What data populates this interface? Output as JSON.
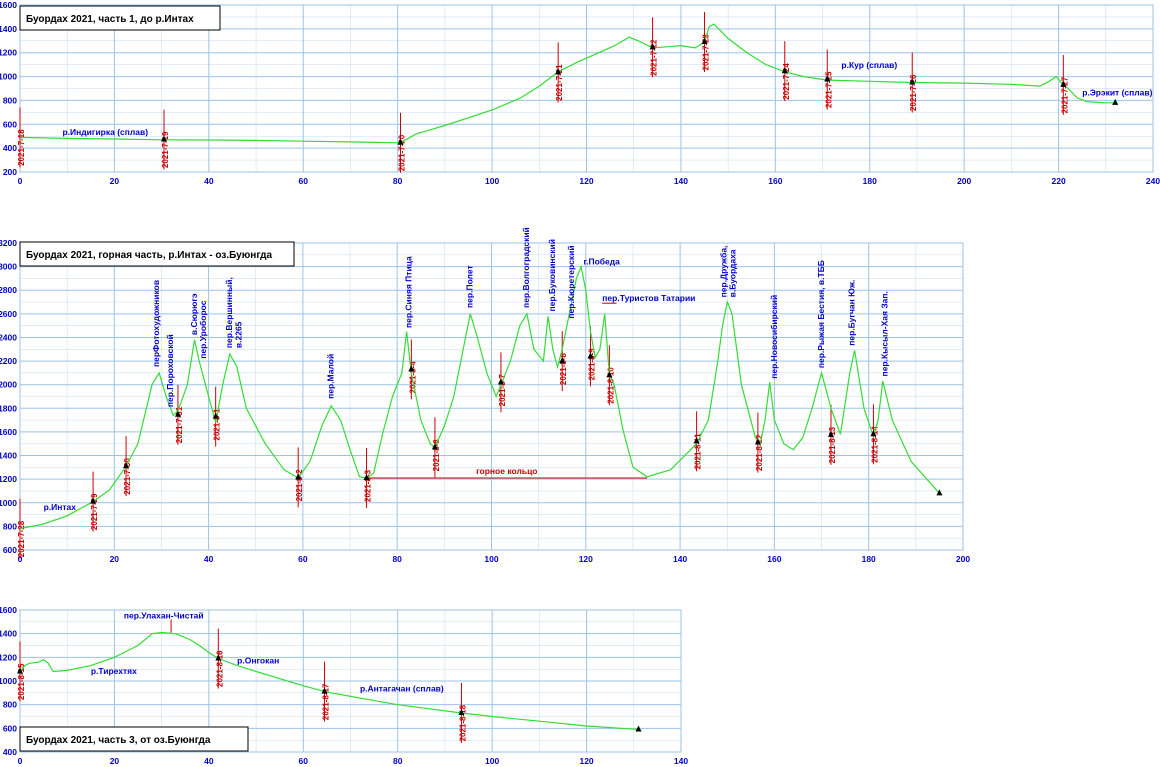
{
  "colors": {
    "grid": "#9dc3e6",
    "profile": "#33dd33",
    "marker": "#cc0000",
    "day_label": "#cc0000",
    "place_label": "#0000cc",
    "tick_label": "#0000cc",
    "ring": "#cc0000",
    "camp": "#000000"
  },
  "chart_data": [
    {
      "type": "line",
      "title": "Буордах 2021, часть 1, до р.Интах",
      "xlim": [
        0,
        240
      ],
      "ylim": [
        200,
        1600
      ],
      "x_ticks": [
        0,
        20,
        40,
        60,
        80,
        100,
        120,
        140,
        160,
        180,
        200,
        220,
        240
      ],
      "y_ticks": [
        200,
        400,
        600,
        800,
        1000,
        1200,
        1400,
        1600
      ],
      "series": [
        {
          "x": [
            0,
            10,
            20,
            30,
            40,
            50,
            60,
            70,
            80.6,
            84,
            90,
            100,
            106,
            110,
            114,
            118,
            122,
            126,
            129,
            131,
            134,
            137,
            140,
            143,
            145,
            146,
            147,
            150,
            154,
            158,
            162,
            166,
            171,
            180,
            189,
            200,
            210,
            216,
            218,
            219.5,
            221,
            222,
            224,
            226,
            230,
            232
          ],
          "y": [
            490,
            482,
            477,
            470,
            468,
            465,
            458,
            452,
            445,
            520,
            590,
            720,
            820,
            920,
            1040,
            1120,
            1190,
            1260,
            1330,
            1300,
            1240,
            1250,
            1260,
            1240,
            1290,
            1420,
            1440,
            1320,
            1200,
            1100,
            1040,
            1000,
            970,
            960,
            950,
            945,
            935,
            920,
            960,
            1000,
            930,
            900,
            820,
            790,
            780,
            780
          ]
        }
      ],
      "markers": [
        {
          "x": 0,
          "y": 490,
          "day": "2021-7-18"
        },
        {
          "x": 30.5,
          "y": 472,
          "day": "2021-7-19"
        },
        {
          "x": 80.6,
          "y": 445,
          "day": "2021-7-20"
        },
        {
          "x": 114,
          "y": 1035,
          "day": "2021-7-21"
        },
        {
          "x": 134,
          "y": 1245,
          "day": "2021-7-22"
        },
        {
          "x": 145,
          "y": 1290,
          "day": "2021-7-23"
        },
        {
          "x": 162,
          "y": 1045,
          "day": "2021-7-24"
        },
        {
          "x": 171,
          "y": 975,
          "day": "2021-7-25"
        },
        {
          "x": 189,
          "y": 950,
          "day": "2021-7-26"
        },
        {
          "x": 221,
          "y": 930,
          "day": "2021-7-27"
        }
      ],
      "camps": [
        {
          "x": 30.5,
          "y": 472
        },
        {
          "x": 80.6,
          "y": 445
        },
        {
          "x": 114,
          "y": 1035
        },
        {
          "x": 134,
          "y": 1245
        },
        {
          "x": 145,
          "y": 1290
        },
        {
          "x": 162,
          "y": 1045
        },
        {
          "x": 171,
          "y": 975
        },
        {
          "x": 189,
          "y": 950
        },
        {
          "x": 221,
          "y": 930
        },
        {
          "x": 232,
          "y": 780
        }
      ],
      "labels": [
        {
          "text": "р.Индигирка (сплав)",
          "x": 9,
          "y": 510
        },
        {
          "text": "р.Кур (сплав)",
          "x": 174,
          "y": 1070
        },
        {
          "text": "р.Эрэкит (сплав)",
          "x": 225,
          "y": 840
        }
      ]
    },
    {
      "type": "line",
      "title": "Буордах 2021, горная часть, р.Интах - оз.Буюнгда",
      "xlim": [
        0,
        200
      ],
      "ylim": [
        600,
        3200
      ],
      "x_ticks": [
        0,
        20,
        40,
        60,
        80,
        100,
        120,
        140,
        160,
        180,
        200
      ],
      "y_ticks": [
        600,
        800,
        1000,
        1200,
        1400,
        1600,
        1800,
        2000,
        2200,
        2400,
        2600,
        2800,
        3000,
        3200
      ],
      "series": [
        {
          "x": [
            0,
            5,
            10,
            15.5,
            19,
            22.5,
            25,
            28,
            29.5,
            31,
            32.5,
            33.5,
            35.5,
            37,
            38,
            40,
            41.5,
            43,
            44.5,
            46,
            48,
            52,
            56,
            59,
            61.5,
            64,
            66,
            68,
            70,
            72,
            73.5,
            75,
            77,
            79,
            81,
            82,
            83,
            85,
            87,
            88,
            90,
            92,
            94,
            95.5,
            97,
            99,
            101,
            102,
            104,
            106,
            107.5,
            109,
            110,
            111,
            112,
            113,
            114,
            115,
            116,
            117,
            118,
            119,
            120,
            121,
            122,
            123,
            124,
            125,
            126,
            128,
            130,
            133,
            138,
            143.5,
            146,
            148,
            149,
            150,
            151,
            153,
            156,
            157,
            158,
            159,
            160,
            162,
            164,
            166,
            168,
            170,
            172,
            174,
            176,
            177,
            179,
            181,
            182,
            183,
            185,
            189,
            193,
            195
          ],
          "y": [
            780,
            820,
            890,
            1010,
            1110,
            1310,
            1500,
            2000,
            2100,
            1900,
            1740,
            1780,
            2000,
            2380,
            2200,
            1900,
            1680,
            2000,
            2260,
            2150,
            1800,
            1500,
            1280,
            1210,
            1350,
            1650,
            1820,
            1700,
            1450,
            1220,
            1210,
            1250,
            1600,
            1900,
            2100,
            2450,
            2100,
            1700,
            1500,
            1470,
            1650,
            1900,
            2300,
            2600,
            2400,
            2100,
            1900,
            2000,
            2200,
            2500,
            2600,
            2300,
            2250,
            2200,
            2580,
            2300,
            2150,
            2300,
            2500,
            2700,
            2900,
            3000,
            2800,
            2450,
            2230,
            2300,
            2600,
            2080,
            2000,
            1600,
            1300,
            1220,
            1280,
            1500,
            1700,
            2200,
            2500,
            2700,
            2600,
            2000,
            1550,
            1500,
            1700,
            2020,
            1700,
            1500,
            1450,
            1550,
            1800,
            2100,
            1800,
            1580,
            2100,
            2290,
            1800,
            1560,
            1700,
            2030,
            1700,
            1350,
            1170,
            1080
          ]
        }
      ],
      "markers": [
        {
          "x": 0,
          "y": 780,
          "day": "2021-7-28"
        },
        {
          "x": 15.5,
          "y": 1010,
          "day": "2021-7-29"
        },
        {
          "x": 22.5,
          "y": 1310,
          "day": "2021-7-30"
        },
        {
          "x": 33.5,
          "y": 1745,
          "day": "2021-7-31"
        },
        {
          "x": 41.5,
          "y": 1730,
          "day": "2021-8-1"
        },
        {
          "x": 59,
          "y": 1215,
          "day": "2021-8-2"
        },
        {
          "x": 73.5,
          "y": 1210,
          "day": "2021-8-3"
        },
        {
          "x": 83,
          "y": 2130,
          "day": "2021-8-4"
        },
        {
          "x": 88,
          "y": 1470,
          "day": "2021-8-6"
        },
        {
          "x": 102,
          "y": 2020,
          "day": "2021-8-7"
        },
        {
          "x": 115,
          "y": 2200,
          "day": "2021-8-8"
        },
        {
          "x": 121,
          "y": 2240,
          "day": "2021-8-9"
        },
        {
          "x": 125,
          "y": 2080,
          "day": "2021-8-10"
        },
        {
          "x": 143.5,
          "y": 1520,
          "day": "2021-8-11"
        },
        {
          "x": 156.5,
          "y": 1510,
          "day": "2021-8-12"
        },
        {
          "x": 172,
          "y": 1575,
          "day": "2021-8-13"
        },
        {
          "x": 181,
          "y": 1580,
          "day": "2021-8-14"
        }
      ],
      "camps": [
        {
          "x": 15.5,
          "y": 1010
        },
        {
          "x": 22.5,
          "y": 1310
        },
        {
          "x": 33.5,
          "y": 1745
        },
        {
          "x": 41.5,
          "y": 1730
        },
        {
          "x": 59,
          "y": 1215
        },
        {
          "x": 73.5,
          "y": 1210
        },
        {
          "x": 83,
          "y": 2130
        },
        {
          "x": 88,
          "y": 1470
        },
        {
          "x": 102,
          "y": 2020
        },
        {
          "x": 115,
          "y": 2200
        },
        {
          "x": 121,
          "y": 2240
        },
        {
          "x": 125,
          "y": 2080
        },
        {
          "x": 143.5,
          "y": 1520
        },
        {
          "x": 156.5,
          "y": 1510
        },
        {
          "x": 172,
          "y": 1575
        },
        {
          "x": 181,
          "y": 1580
        },
        {
          "x": 195,
          "y": 1080
        }
      ],
      "labels": [
        {
          "text": "р.Интах",
          "x": 5,
          "y": 940,
          "rot": 0
        },
        {
          "text": "перФотохудожников",
          "x": 29.5,
          "y": 2150,
          "rot": -90
        },
        {
          "text": "пер.Пороховской",
          "x": 32.5,
          "y": 1810,
          "rot": -90
        },
        {
          "text": "в.Сюрюгэ",
          "x": 37.5,
          "y": 2420,
          "rot": -90
        },
        {
          "text": "пер.Уроборос",
          "x": 39.5,
          "y": 2220,
          "rot": -90
        },
        {
          "text": "пер.Вершинный,",
          "x": 45,
          "y": 2310,
          "rot": -90
        },
        {
          "text": "в.2265",
          "x": 47,
          "y": 2310,
          "rot": -90
        },
        {
          "text": "пер.Малой",
          "x": 66.5,
          "y": 1880,
          "rot": -90
        },
        {
          "text": "пер.Синяя Птица",
          "x": 83,
          "y": 2480,
          "rot": -90
        },
        {
          "text": "пер.Полет",
          "x": 96,
          "y": 2650,
          "rot": -90
        },
        {
          "text": "пер.Волгоградский",
          "x": 108,
          "y": 2650,
          "rot": -90
        },
        {
          "text": "пер.Буковинский",
          "x": 113.5,
          "y": 2620,
          "rot": -90
        },
        {
          "text": "пер.Кюретерский",
          "x": 117.5,
          "y": 2560,
          "rot": -90
        },
        {
          "text": "г.Победа",
          "x": 119.5,
          "y": 3020,
          "rot": 0
        },
        {
          "text": "пер.Туристов Татарии",
          "x": 123.5,
          "y": 2710,
          "rot": 0
        },
        {
          "text": "пер.Дружба,",
          "x": 149.8,
          "y": 2740,
          "rot": -90
        },
        {
          "text": "в.Буордаха",
          "x": 151.8,
          "y": 2740,
          "rot": -90
        },
        {
          "text": "пер.Новосибирский",
          "x": 160.5,
          "y": 2050,
          "rot": -90
        },
        {
          "text": "пер.Рыжая Бестия, в.ТББ",
          "x": 170.5,
          "y": 2140,
          "rot": -90
        },
        {
          "text": "пер.Бугчан Юж.",
          "x": 177,
          "y": 2330,
          "rot": -90
        },
        {
          "text": "пер.Кысыл-Хая Зап.",
          "x": 184,
          "y": 2070,
          "rot": -90
        }
      ],
      "ring": {
        "label": "горное кольцо",
        "x1": 73.5,
        "x2": 133,
        "y": 1210
      },
      "pobeda_bar": {
        "x1": 123.5,
        "x2": 126.5,
        "y": 2690
      }
    },
    {
      "type": "line",
      "title": "Буордах 2021, часть 3, от оз.Буюнгда",
      "xlim": [
        0,
        140
      ],
      "ylim": [
        400,
        1600
      ],
      "x_ticks": [
        0,
        20,
        40,
        60,
        80,
        100,
        120,
        140
      ],
      "y_ticks": [
        400,
        600,
        800,
        1000,
        1200,
        1400,
        1600
      ],
      "series": [
        {
          "x": [
            0,
            1,
            2,
            4,
            5,
            6,
            7,
            10,
            15,
            20,
            25,
            28,
            30,
            33,
            36,
            38,
            40,
            42,
            46,
            50,
            60,
            64.5,
            70,
            80,
            93.5,
            100,
            110,
            120,
            131
          ],
          "y": [
            1080,
            1130,
            1150,
            1160,
            1180,
            1150,
            1080,
            1090,
            1130,
            1200,
            1300,
            1400,
            1410,
            1400,
            1350,
            1300,
            1240,
            1190,
            1130,
            1080,
            960,
            910,
            870,
            800,
            730,
            700,
            660,
            620,
            590
          ]
        }
      ],
      "markers": [
        {
          "x": 0,
          "y": 1080,
          "day": "2021-8-15"
        },
        {
          "x": 42,
          "y": 1190,
          "day": "2021-8-16"
        },
        {
          "x": 64.5,
          "y": 910,
          "day": "2021-8-17"
        },
        {
          "x": 93.5,
          "y": 730,
          "day": "2021-8-18"
        }
      ],
      "camps": [
        {
          "x": 0,
          "y": 1080
        },
        {
          "x": 42,
          "y": 1190
        },
        {
          "x": 64.5,
          "y": 910
        },
        {
          "x": 93.5,
          "y": 730
        },
        {
          "x": 131,
          "y": 590
        }
      ],
      "labels": [
        {
          "text": "р.Тирехтях",
          "x": 15,
          "y": 1060
        },
        {
          "text": "пер.Улахан-Чистай",
          "x": 22,
          "y": 1530
        },
        {
          "text": "р.Онгокан",
          "x": 46,
          "y": 1150
        },
        {
          "text": "р.Антагачан (сплав)",
          "x": 72,
          "y": 910
        }
      ],
      "pass_tick": {
        "x": 32,
        "y1": 1410,
        "y2": 1520
      }
    }
  ]
}
